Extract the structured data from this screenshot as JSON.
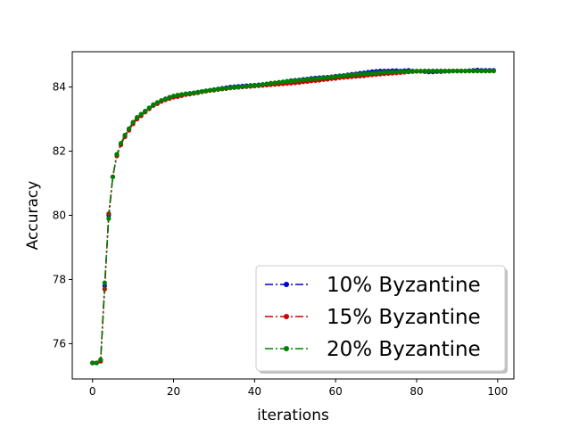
{
  "chart_data": {
    "type": "line",
    "title": "",
    "xlabel": "iterations",
    "ylabel": "Accuracy",
    "xlim": [
      -5,
      104
    ],
    "ylim": [
      74.9,
      85.1
    ],
    "xticks": [
      0,
      20,
      40,
      60,
      80,
      100
    ],
    "yticks": [
      76,
      78,
      80,
      82,
      84
    ],
    "grid": false,
    "legend": "lower-right",
    "x": [
      0,
      1,
      2,
      3,
      4,
      5,
      6,
      7,
      8,
      9,
      10,
      11,
      12,
      13,
      14,
      15,
      16,
      17,
      18,
      19,
      20,
      21,
      22,
      23,
      24,
      25,
      26,
      27,
      28,
      29,
      30,
      31,
      32,
      33,
      34,
      35,
      36,
      37,
      38,
      39,
      40,
      41,
      42,
      43,
      44,
      45,
      46,
      47,
      48,
      49,
      50,
      51,
      52,
      53,
      54,
      55,
      56,
      57,
      58,
      59,
      60,
      61,
      62,
      63,
      64,
      65,
      66,
      67,
      68,
      69,
      70,
      71,
      72,
      73,
      74,
      75,
      76,
      77,
      78,
      79,
      80,
      81,
      82,
      83,
      84,
      85,
      86,
      87,
      88,
      89,
      90,
      91,
      92,
      93,
      94,
      95,
      96,
      97,
      98,
      99
    ],
    "series": [
      {
        "name": "10% Byzantine",
        "color": "#0000cc",
        "values": [
          75.4,
          75.4,
          75.5,
          77.8,
          80.0,
          81.2,
          81.9,
          82.2,
          82.5,
          82.7,
          82.9,
          83.05,
          83.15,
          83.25,
          83.35,
          83.45,
          83.5,
          83.58,
          83.63,
          83.68,
          83.7,
          83.72,
          83.75,
          83.78,
          83.8,
          83.82,
          83.84,
          83.86,
          83.88,
          83.9,
          83.92,
          83.94,
          83.96,
          83.98,
          84.0,
          84.01,
          84.02,
          84.03,
          84.04,
          84.05,
          84.06,
          84.07,
          84.08,
          84.09,
          84.1,
          84.12,
          84.14,
          84.16,
          84.18,
          84.2,
          84.21,
          84.22,
          84.24,
          84.25,
          84.27,
          84.28,
          84.29,
          84.3,
          84.31,
          84.32,
          84.34,
          84.35,
          84.36,
          84.38,
          84.4,
          84.41,
          84.43,
          84.44,
          84.46,
          84.48,
          84.49,
          84.5,
          84.5,
          84.5,
          84.51,
          84.51,
          84.5,
          84.51,
          84.52,
          84.5,
          84.49,
          84.49,
          84.48,
          84.47,
          84.47,
          84.48,
          84.48,
          84.49,
          84.49,
          84.5,
          84.5,
          84.5,
          84.5,
          84.51,
          84.52,
          84.53,
          84.52,
          84.52,
          84.52,
          84.52
        ]
      },
      {
        "name": "15% Byzantine",
        "color": "#cc0000",
        "values": [
          75.4,
          75.4,
          75.45,
          77.7,
          80.05,
          81.2,
          81.85,
          82.2,
          82.45,
          82.65,
          82.85,
          83.0,
          83.1,
          83.22,
          83.32,
          83.42,
          83.48,
          83.55,
          83.6,
          83.64,
          83.68,
          83.7,
          83.73,
          83.76,
          83.78,
          83.8,
          83.82,
          83.85,
          83.87,
          83.89,
          83.9,
          83.92,
          83.94,
          83.95,
          83.97,
          83.98,
          83.99,
          84.0,
          84.01,
          84.02,
          84.03,
          84.04,
          84.05,
          84.06,
          84.07,
          84.08,
          84.09,
          84.1,
          84.11,
          84.12,
          84.13,
          84.14,
          84.16,
          84.17,
          84.19,
          84.2,
          84.21,
          84.23,
          84.24,
          84.26,
          84.27,
          84.29,
          84.3,
          84.31,
          84.32,
          84.33,
          84.34,
          84.35,
          84.37,
          84.38,
          84.39,
          84.4,
          84.41,
          84.42,
          84.43,
          84.44,
          84.45,
          84.46,
          84.47,
          84.48,
          84.49,
          84.49,
          84.5,
          84.5,
          84.5,
          84.5,
          84.5,
          84.5,
          84.5,
          84.5,
          84.5,
          84.5,
          84.5,
          84.5,
          84.5,
          84.5,
          84.5,
          84.5,
          84.5,
          84.5
        ]
      },
      {
        "name": "20% Byzantine",
        "color": "#008000",
        "values": [
          75.4,
          75.4,
          75.5,
          77.9,
          79.9,
          81.2,
          81.9,
          82.25,
          82.5,
          82.7,
          82.9,
          83.05,
          83.15,
          83.25,
          83.35,
          83.45,
          83.52,
          83.58,
          83.62,
          83.67,
          83.72,
          83.75,
          83.77,
          83.79,
          83.8,
          83.82,
          83.84,
          83.86,
          83.88,
          83.9,
          83.91,
          83.93,
          83.95,
          83.96,
          83.98,
          83.99,
          84.0,
          84.01,
          84.02,
          84.04,
          84.05,
          84.06,
          84.08,
          84.1,
          84.12,
          84.13,
          84.15,
          84.16,
          84.18,
          84.19,
          84.2,
          84.21,
          84.22,
          84.24,
          84.25,
          84.26,
          84.27,
          84.29,
          84.3,
          84.31,
          84.33,
          84.34,
          84.35,
          84.37,
          84.38,
          84.39,
          84.4,
          84.41,
          84.42,
          84.43,
          84.44,
          84.45,
          84.46,
          84.46,
          84.47,
          84.47,
          84.48,
          84.48,
          84.49,
          84.49,
          84.5,
          84.5,
          84.5,
          84.5,
          84.5,
          84.5,
          84.5,
          84.5,
          84.5,
          84.5,
          84.5,
          84.5,
          84.5,
          84.5,
          84.5,
          84.5,
          84.5,
          84.5,
          84.5,
          84.5
        ]
      }
    ]
  }
}
